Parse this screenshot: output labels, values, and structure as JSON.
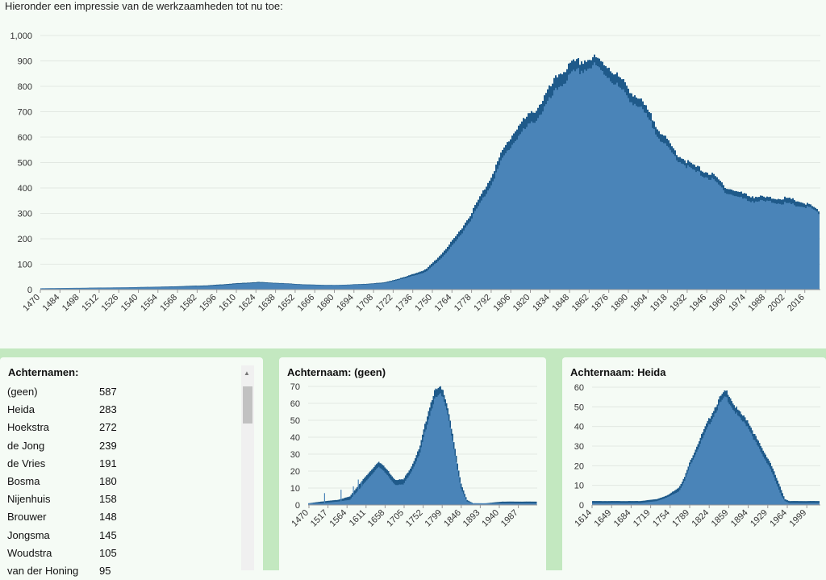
{
  "intro_text": "Hieronder een impressie van de werkzaamheden tot nu toe:",
  "colors": {
    "bar": "#4a84b8",
    "bar_edge": "#1f5a8a",
    "band": "#c3e8c0",
    "grid": "#e2e8e2"
  },
  "chart_data": [
    {
      "type": "area",
      "title": "",
      "xlabel": "",
      "ylabel": "",
      "ylim": [
        0,
        1000
      ],
      "yticks": [
        "0",
        "100",
        "200",
        "300",
        "400",
        "500",
        "600",
        "700",
        "800",
        "900",
        "1,000"
      ],
      "xticks": [
        "1470",
        "1484",
        "1498",
        "1512",
        "1526",
        "1540",
        "1554",
        "1568",
        "1582",
        "1596",
        "1610",
        "1624",
        "1638",
        "1652",
        "1666",
        "1680",
        "1694",
        "1708",
        "1722",
        "1736",
        "1750",
        "1764",
        "1778",
        "1792",
        "1806",
        "1820",
        "1834",
        "1848",
        "1862",
        "1876",
        "1890",
        "1904",
        "1918",
        "1932",
        "1946",
        "1960",
        "1974",
        "1988",
        "2002",
        "2016"
      ],
      "xlim": [
        1470,
        2027
      ],
      "x": [
        1470,
        1500,
        1530,
        1560,
        1590,
        1610,
        1625,
        1640,
        1660,
        1680,
        1700,
        1715,
        1730,
        1745,
        1755,
        1765,
        1775,
        1790,
        1800,
        1810,
        1825,
        1840,
        1850,
        1860,
        1865,
        1875,
        1885,
        1900,
        1915,
        1925,
        1935,
        1950,
        1960,
        1975,
        1990,
        2000,
        2010,
        2020,
        2027
      ],
      "values": [
        5,
        6,
        8,
        10,
        14,
        22,
        27,
        24,
        18,
        17,
        20,
        25,
        45,
        70,
        120,
        180,
        260,
        400,
        520,
        600,
        680,
        800,
        850,
        870,
        880,
        840,
        780,
        700,
        570,
        510,
        470,
        430,
        380,
        350,
        345,
        340,
        330,
        320,
        290
      ],
      "upper": [
        5,
        7,
        9,
        12,
        17,
        25,
        30,
        26,
        20,
        18,
        22,
        28,
        50,
        80,
        135,
        200,
        280,
        430,
        550,
        640,
        720,
        850,
        890,
        905,
        910,
        880,
        820,
        730,
        600,
        530,
        490,
        450,
        400,
        370,
        360,
        360,
        350,
        330,
        300
      ],
      "grid": true
    },
    {
      "type": "area",
      "title": "Achternaam: (geen)",
      "ylim": [
        0,
        70
      ],
      "yticks": [
        "0",
        "10",
        "20",
        "30",
        "40",
        "50",
        "60",
        "70"
      ],
      "xticks": [
        "1470",
        "1517",
        "1564",
        "1611",
        "1658",
        "1705",
        "1752",
        "1799",
        "1846",
        "1893",
        "1940",
        "1987"
      ],
      "xlim": [
        1470,
        2027
      ],
      "x": [
        1470,
        1500,
        1540,
        1570,
        1595,
        1620,
        1640,
        1660,
        1680,
        1700,
        1720,
        1740,
        1760,
        1775,
        1790,
        1800,
        1810,
        1825,
        1840,
        1855,
        1870,
        1900,
        1940,
        1990,
        2027
      ],
      "values": [
        1,
        1,
        2,
        3,
        10,
        17,
        23,
        18,
        12,
        12,
        20,
        30,
        50,
        62,
        65,
        62,
        52,
        30,
        10,
        2,
        1,
        1,
        1,
        1,
        1
      ],
      "upper": [
        1,
        2,
        3,
        5,
        13,
        20,
        26,
        21,
        15,
        15,
        23,
        34,
        55,
        67,
        69,
        66,
        56,
        34,
        13,
        3,
        1,
        1,
        2,
        2,
        2
      ],
      "spikes": [
        [
          1510,
          7
        ],
        [
          1550,
          9
        ],
        [
          1580,
          11
        ],
        [
          1592,
          15
        ],
        [
          1600,
          14
        ],
        [
          1640,
          18
        ]
      ],
      "grid": true
    },
    {
      "type": "area",
      "title": "Achternaam: Heida",
      "ylim": [
        0,
        60
      ],
      "yticks": [
        "0",
        "10",
        "20",
        "30",
        "40",
        "50",
        "60"
      ],
      "xticks": [
        "1614",
        "1649",
        "1684",
        "1719",
        "1754",
        "1789",
        "1824",
        "1859",
        "1894",
        "1929",
        "1964",
        "1999"
      ],
      "xlim": [
        1614,
        2027
      ],
      "x": [
        1614,
        1650,
        1700,
        1730,
        1750,
        1770,
        1780,
        1790,
        1810,
        1830,
        1845,
        1855,
        1860,
        1870,
        1880,
        1895,
        1905,
        1920,
        1935,
        1945,
        1955,
        1962,
        1970,
        1980,
        2027
      ],
      "values": [
        1,
        1,
        1,
        2,
        4,
        7,
        12,
        20,
        32,
        44,
        52,
        55,
        53,
        48,
        44,
        40,
        34,
        26,
        19,
        12,
        5,
        2,
        1,
        1,
        1
      ],
      "upper": [
        2,
        2,
        2,
        3,
        5,
        9,
        14,
        22,
        35,
        47,
        55,
        58,
        57,
        51,
        47,
        43,
        37,
        29,
        22,
        15,
        8,
        3,
        2,
        2,
        2
      ],
      "grid": true
    }
  ],
  "surnames": {
    "title": "Achternamen:",
    "rows": [
      {
        "name": "(geen)",
        "count": "587"
      },
      {
        "name": "Heida",
        "count": "283"
      },
      {
        "name": "Hoekstra",
        "count": "272"
      },
      {
        "name": "de Jong",
        "count": "239"
      },
      {
        "name": "de Vries",
        "count": "191"
      },
      {
        "name": "Bosma",
        "count": "180"
      },
      {
        "name": "Nijenhuis",
        "count": "158"
      },
      {
        "name": "Brouwer",
        "count": "148"
      },
      {
        "name": "Jongsma",
        "count": "145"
      },
      {
        "name": "Woudstra",
        "count": "105"
      },
      {
        "name": "van der Honing",
        "count": "95"
      }
    ]
  }
}
